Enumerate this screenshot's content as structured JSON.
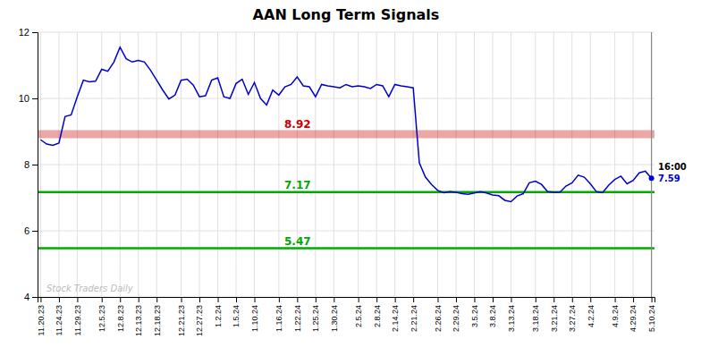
{
  "chart_data": {
    "type": "line",
    "title": "AAN Long Term Signals",
    "color": "#0000cc",
    "grid": true,
    "ylim": [
      4,
      12
    ],
    "yticks": [
      4,
      6,
      8,
      10,
      12
    ],
    "categories": [
      "11.20.23",
      null,
      null,
      "11.24.23",
      null,
      null,
      "11.29.23",
      null,
      null,
      null,
      "12.5.23",
      null,
      null,
      "12.8.23",
      null,
      null,
      "12.13.23",
      null,
      null,
      "12.18.23",
      null,
      null,
      null,
      "12.21.23",
      null,
      null,
      "12.27.23",
      null,
      null,
      "1.2.24",
      null,
      null,
      "1.5.24",
      null,
      null,
      "1.10.24",
      null,
      null,
      null,
      "1.16.24",
      null,
      null,
      "1.22.24",
      null,
      null,
      "1.25.24",
      null,
      null,
      "1.30.24",
      null,
      null,
      null,
      "2.5.24",
      null,
      null,
      "2.8.24",
      null,
      null,
      "2.14.24",
      null,
      null,
      "2.21.24",
      null,
      null,
      null,
      "2.26.24",
      null,
      null,
      "2.29.24",
      null,
      null,
      "3.5.24",
      null,
      null,
      "3.8.24",
      null,
      null,
      "3.13.24",
      null,
      null,
      null,
      "3.18.24",
      null,
      null,
      "3.21.24",
      null,
      null,
      "3.27.24",
      null,
      null,
      "4.2.24",
      null,
      null,
      null,
      "4.9.24",
      null,
      null,
      "4.29.24",
      null,
      null,
      "5.10.24"
    ],
    "values": [
      8.75,
      8.62,
      8.58,
      8.65,
      9.45,
      9.5,
      10.05,
      10.55,
      10.5,
      10.52,
      10.88,
      10.82,
      11.1,
      11.55,
      11.2,
      11.1,
      11.15,
      11.1,
      10.85,
      10.55,
      10.25,
      9.98,
      10.1,
      10.55,
      10.58,
      10.4,
      10.05,
      10.08,
      10.55,
      10.62,
      10.05,
      10.0,
      10.45,
      10.58,
      10.12,
      10.48,
      10.0,
      9.8,
      10.25,
      10.1,
      10.35,
      10.42,
      10.65,
      10.38,
      10.35,
      10.05,
      10.42,
      10.38,
      10.35,
      10.32,
      10.42,
      10.35,
      10.38,
      10.35,
      10.3,
      10.42,
      10.38,
      10.05,
      10.42,
      10.38,
      10.35,
      10.32,
      8.05,
      7.62,
      7.4,
      7.22,
      7.15,
      7.18,
      7.16,
      7.12,
      7.1,
      7.14,
      7.18,
      7.14,
      7.08,
      7.06,
      6.92,
      6.88,
      7.05,
      7.12,
      7.45,
      7.5,
      7.4,
      7.18,
      7.16,
      7.16,
      7.35,
      7.45,
      7.68,
      7.62,
      7.42,
      7.18,
      7.15,
      7.38,
      7.55,
      7.65,
      7.42,
      7.52,
      7.75,
      7.8,
      7.59
    ],
    "reference_lines": [
      {
        "value": 8.92,
        "color": "#cc0000"
      },
      {
        "value": 7.17,
        "color": "#00aa00"
      },
      {
        "value": 5.47,
        "color": "#00aa00"
      }
    ],
    "last_price": 7.59,
    "last_time_label": "16:00",
    "watermark": "Stock Traders Daily"
  }
}
